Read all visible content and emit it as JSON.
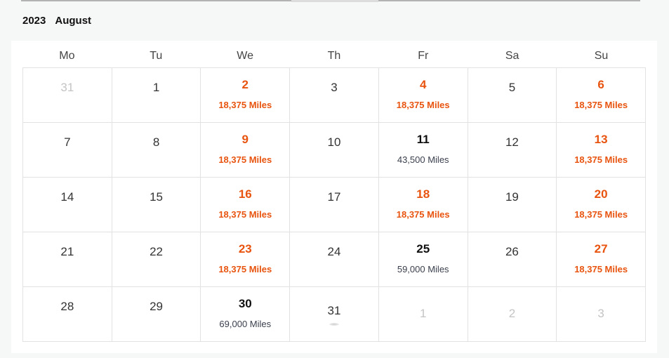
{
  "header": {
    "year": "2023",
    "month": "August"
  },
  "colors": {
    "deal": "#e8540f",
    "regular": "#3a3f4d",
    "muted": "#c4c4c4"
  },
  "weekdays": [
    "Mo",
    "Tu",
    "We",
    "Th",
    "Fr",
    "Sa",
    "Su"
  ],
  "calendar": {
    "cells": [
      {
        "day": "31",
        "state": "muted"
      },
      {
        "day": "1",
        "state": "plain"
      },
      {
        "day": "2",
        "state": "deal",
        "miles": "18,375 Miles"
      },
      {
        "day": "3",
        "state": "plain"
      },
      {
        "day": "4",
        "state": "deal",
        "miles": "18,375 Miles"
      },
      {
        "day": "5",
        "state": "plain"
      },
      {
        "day": "6",
        "state": "deal",
        "miles": "18,375 Miles"
      },
      {
        "day": "7",
        "state": "plain"
      },
      {
        "day": "8",
        "state": "plain"
      },
      {
        "day": "9",
        "state": "deal",
        "miles": "18,375 Miles"
      },
      {
        "day": "10",
        "state": "plain"
      },
      {
        "day": "11",
        "state": "regular",
        "miles": "43,500 Miles"
      },
      {
        "day": "12",
        "state": "plain"
      },
      {
        "day": "13",
        "state": "deal",
        "miles": "18,375 Miles"
      },
      {
        "day": "14",
        "state": "plain"
      },
      {
        "day": "15",
        "state": "plain"
      },
      {
        "day": "16",
        "state": "deal",
        "miles": "18,375 Miles"
      },
      {
        "day": "17",
        "state": "plain"
      },
      {
        "day": "18",
        "state": "deal",
        "miles": "18,375 Miles"
      },
      {
        "day": "19",
        "state": "plain"
      },
      {
        "day": "20",
        "state": "deal",
        "miles": "18,375 Miles"
      },
      {
        "day": "21",
        "state": "plain"
      },
      {
        "day": "22",
        "state": "plain"
      },
      {
        "day": "23",
        "state": "deal",
        "miles": "18,375 Miles"
      },
      {
        "day": "24",
        "state": "plain"
      },
      {
        "day": "25",
        "state": "regular",
        "miles": "59,000 Miles"
      },
      {
        "day": "26",
        "state": "plain"
      },
      {
        "day": "27",
        "state": "deal",
        "miles": "18,375 Miles"
      },
      {
        "day": "28",
        "state": "plain"
      },
      {
        "day": "29",
        "state": "plain"
      },
      {
        "day": "30",
        "state": "regular",
        "miles": "69,000 Miles"
      },
      {
        "day": "31",
        "state": "loading"
      },
      {
        "day": "1",
        "state": "muted-low"
      },
      {
        "day": "2",
        "state": "muted-low"
      },
      {
        "day": "3",
        "state": "muted-low"
      }
    ]
  }
}
